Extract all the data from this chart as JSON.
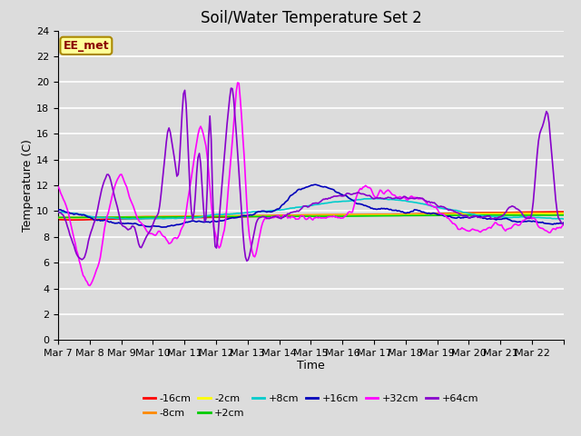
{
  "title": "Soil/Water Temperature Set 2",
  "xlabel": "Time",
  "ylabel": "Temperature (C)",
  "ylim": [
    0,
    24
  ],
  "yticks": [
    0,
    2,
    4,
    6,
    8,
    10,
    12,
    14,
    16,
    18,
    20,
    22,
    24
  ],
  "x_labels": [
    "Mar 7",
    "Mar 8",
    "Mar 9",
    "Mar 10",
    "Mar 11",
    "Mar 12",
    "Mar 13",
    "Mar 14",
    "Mar 15",
    "Mar 16",
    "Mar 17",
    "Mar 18",
    "Mar 19",
    "Mar 20",
    "Mar 21",
    "Mar 22"
  ],
  "series": [
    {
      "label": "-16cm",
      "color": "#ff0000"
    },
    {
      "label": "-8cm",
      "color": "#ff8800"
    },
    {
      "label": "-2cm",
      "color": "#ffff00"
    },
    {
      "label": "+2cm",
      "color": "#00cc00"
    },
    {
      "label": "+8cm",
      "color": "#00cccc"
    },
    {
      "label": "+16cm",
      "color": "#0000bb"
    },
    {
      "label": "+32cm",
      "color": "#ff00ff"
    },
    {
      "label": "+64cm",
      "color": "#8800cc"
    }
  ],
  "annotation_text": "EE_met",
  "bg_color": "#dcdcdc",
  "grid_color": "#ffffff",
  "title_fontsize": 12,
  "axis_fontsize": 9,
  "tick_fontsize": 8
}
